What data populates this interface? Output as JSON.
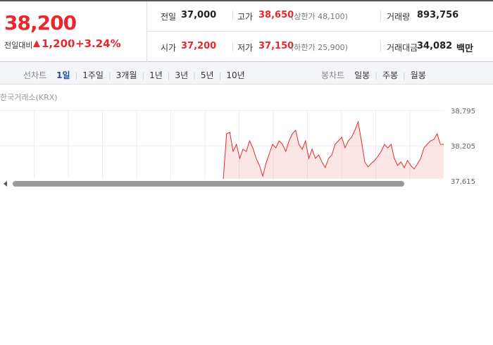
{
  "price": {
    "current": "38,200",
    "change_label": "전일대비",
    "change": "1,200",
    "rate": "+3.24%"
  },
  "stats": [
    {
      "label": "전일",
      "value": "37,000"
    },
    {
      "label": "고가",
      "value": "38,650",
      "note": "(상한가 48,100)"
    },
    {
      "label": "거래량",
      "value": "893,756"
    },
    {
      "label": "시가",
      "value": "37,200"
    },
    {
      "label": "저가",
      "value": "37,150",
      "note": "(하한가 25,900)"
    },
    {
      "label": "거래대금",
      "value": "34,082",
      "unit": "백만"
    }
  ],
  "tabs": {
    "line_label": "선차트",
    "line": [
      "1일",
      "1주일",
      "3개월",
      "1년",
      "3년",
      "5년",
      "10년"
    ],
    "candle_label": "봉차트",
    "candle": [
      "일봉",
      "주봉",
      "월봉"
    ]
  },
  "chart": {
    "source": "한국거래소(KRX)",
    "color": "#e8282d",
    "values": [
      37639,
      38406,
      38429,
      38111,
      38229,
      37993,
      38146,
      38111,
      38288,
      38170,
      37993,
      37875,
      37698,
      37910,
      38075,
      38229,
      38170,
      38288,
      38229,
      38111,
      38288,
      38406,
      38465,
      38229,
      38146,
      38288,
      37993,
      38146,
      37993,
      38052,
      37934,
      37839,
      37993,
      38052,
      38229,
      38288,
      38347,
      38170,
      38288,
      38347,
      38465,
      38606,
      38288,
      37934,
      37851,
      37910,
      37957,
      38028,
      38111,
      38229,
      38170,
      38229,
      37993,
      37875,
      37934,
      37839,
      37957,
      37875,
      37816,
      37898,
      37993,
      38170,
      38229,
      38288,
      38311,
      38406,
      38229,
      38229
    ],
    "ylim": [
      37615,
      38795
    ],
    "yticks": [
      {
        "value": 38795,
        "label": "38,795"
      },
      {
        "value": 38205,
        "label": "38,205"
      },
      {
        "value": 37615,
        "label": "37,615"
      }
    ]
  }
}
